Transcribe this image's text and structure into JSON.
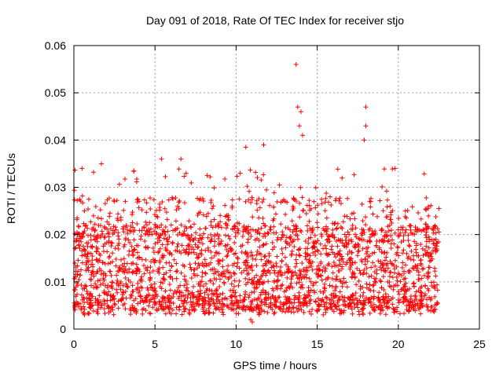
{
  "chart_data": {
    "type": "scatter",
    "title": "Day 091 of 2018, Rate Of TEC Index for receiver stjo",
    "xlabel": "GPS time / hours",
    "ylabel": "ROTI / TECUs",
    "xlim": [
      0,
      25
    ],
    "ylim": [
      0,
      0.06
    ],
    "xticks": [
      "0",
      "5",
      "10",
      "15",
      "20",
      "25"
    ],
    "yticks": [
      "0",
      "0.01",
      "0.02",
      "0.03",
      "0.04",
      "0.05",
      "0.06"
    ],
    "grid": true,
    "marker": "plus",
    "color": "#ff0000",
    "series": [
      {
        "name": "ROTI",
        "x_range": [
          0,
          22.5
        ],
        "typical_band": [
          0.004,
          0.022
        ],
        "notable_points": [
          {
            "x": 0.5,
            "y": 0.034
          },
          {
            "x": 1.7,
            "y": 0.035
          },
          {
            "x": 5.4,
            "y": 0.036
          },
          {
            "x": 6.6,
            "y": 0.036
          },
          {
            "x": 10.6,
            "y": 0.0385
          },
          {
            "x": 11.7,
            "y": 0.039
          },
          {
            "x": 13.7,
            "y": 0.056
          },
          {
            "x": 13.8,
            "y": 0.047
          },
          {
            "x": 14.0,
            "y": 0.046
          },
          {
            "x": 13.9,
            "y": 0.043
          },
          {
            "x": 14.1,
            "y": 0.041
          },
          {
            "x": 18.0,
            "y": 0.047
          },
          {
            "x": 18.0,
            "y": 0.043
          },
          {
            "x": 17.9,
            "y": 0.04
          },
          {
            "x": 19.8,
            "y": 0.034
          },
          {
            "x": 10.9,
            "y": 0.002
          },
          {
            "x": 11.0,
            "y": 0.0015
          }
        ]
      }
    ]
  }
}
